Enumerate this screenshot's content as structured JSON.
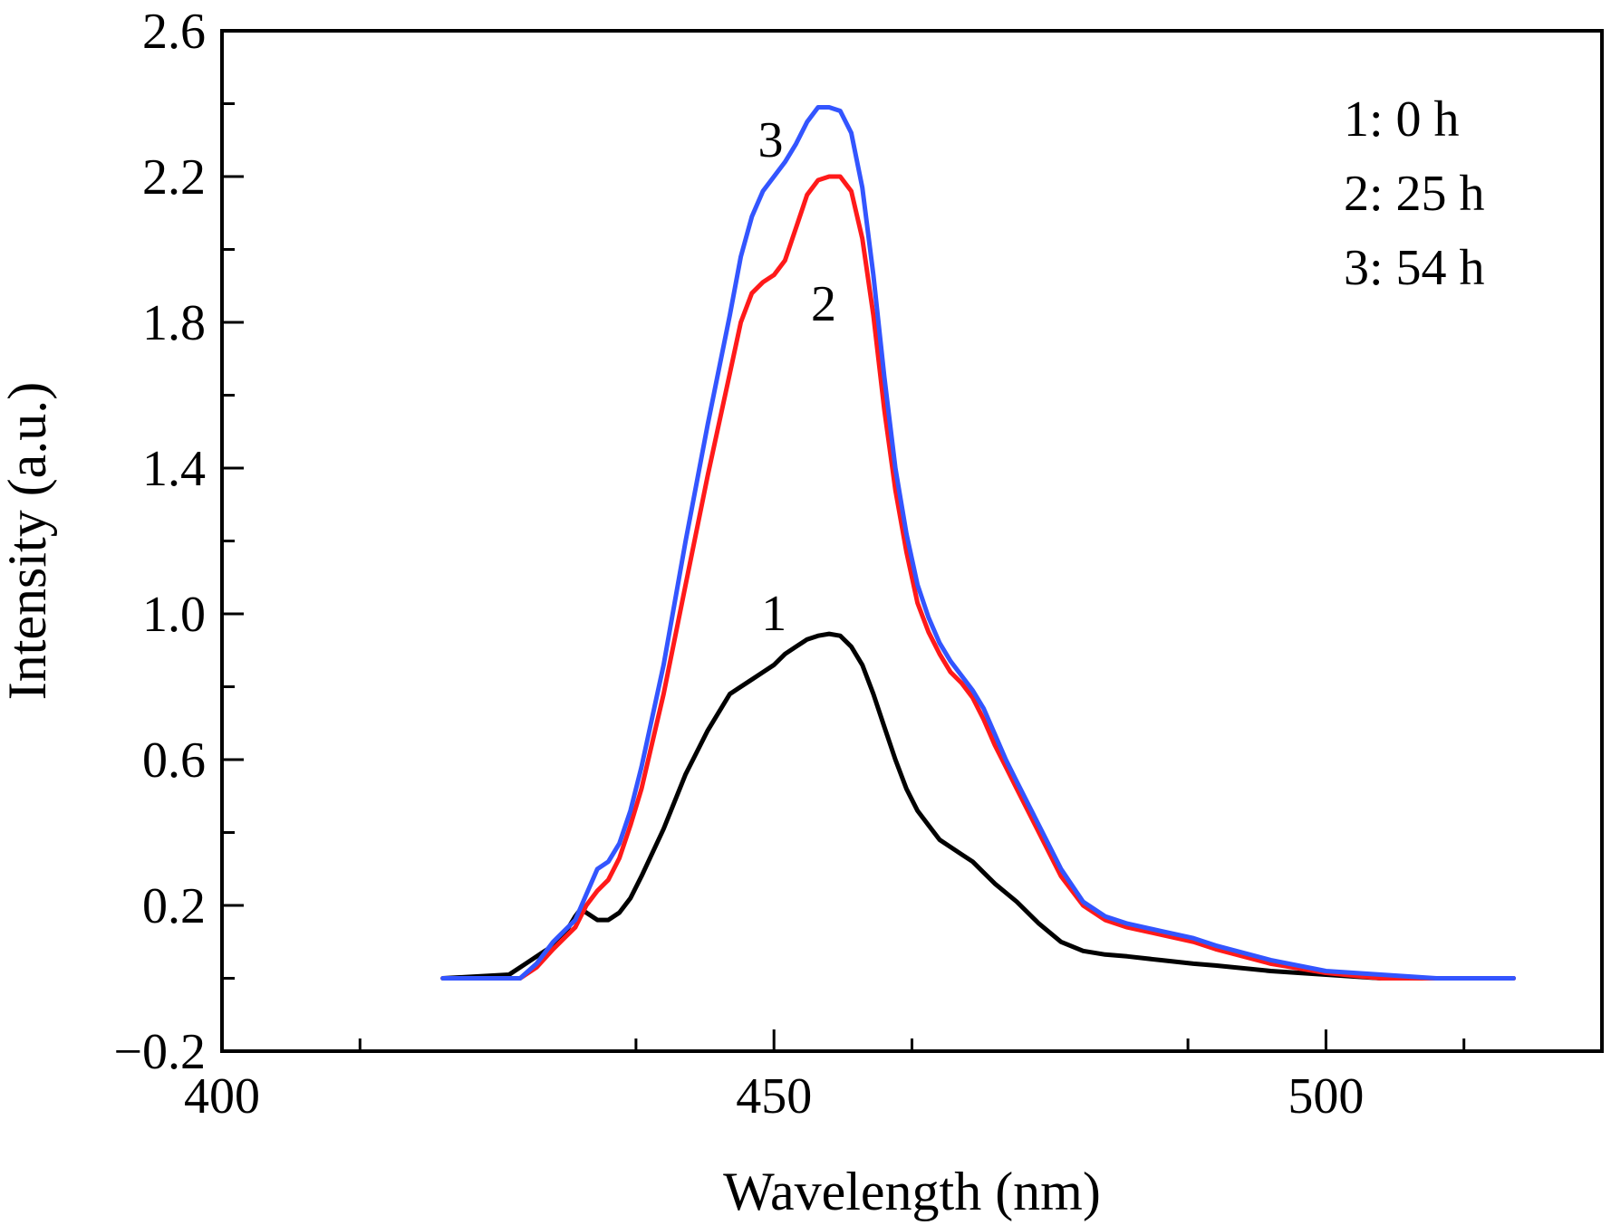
{
  "chart_data": {
    "type": "line",
    "title": "",
    "xlabel": "Wavelength (nm)",
    "ylabel": "Intensity (a.u.)",
    "xlim": [
      400,
      525
    ],
    "ylim": [
      -0.2,
      2.6
    ],
    "x_ticks": [
      400,
      450,
      500
    ],
    "x_tick_labels": [
      "400",
      "450",
      "500"
    ],
    "y_ticks": [
      -0.2,
      0.2,
      0.6,
      1.0,
      1.4,
      1.8,
      2.2,
      2.6
    ],
    "y_tick_labels": [
      "−0.2",
      "0.2",
      "0.6",
      "1.0",
      "1.4",
      "1.8",
      "2.2",
      "2.6"
    ],
    "y_minor_ticks": [
      0.0,
      0.4,
      0.8,
      1.2,
      1.6,
      2.0,
      2.4
    ],
    "grid": false,
    "legend": {
      "position": "top-right",
      "entries": [
        "1: 0 h",
        "2: 25 h",
        "3: 54 h"
      ]
    },
    "series": [
      {
        "name": "1",
        "label": "1",
        "color": "#000000",
        "x": [
          420,
          426,
          427.5,
          429,
          430,
          431,
          432,
          432.5,
          433,
          434,
          435,
          436,
          437,
          438,
          440,
          442,
          444,
          446,
          447,
          448,
          449,
          450,
          451,
          452,
          453,
          454,
          455,
          456,
          457,
          458,
          459,
          460,
          461,
          462,
          463,
          464,
          465,
          466,
          467,
          468,
          469,
          470,
          472,
          474,
          476,
          478,
          480,
          482,
          485,
          488,
          490,
          495,
          500,
          505,
          510,
          517
        ],
        "values": [
          0.0,
          0.01,
          0.04,
          0.07,
          0.09,
          0.12,
          0.17,
          0.19,
          0.18,
          0.16,
          0.16,
          0.18,
          0.22,
          0.28,
          0.41,
          0.56,
          0.68,
          0.78,
          0.8,
          0.82,
          0.84,
          0.86,
          0.89,
          0.91,
          0.93,
          0.94,
          0.945,
          0.94,
          0.91,
          0.86,
          0.78,
          0.69,
          0.6,
          0.52,
          0.46,
          0.42,
          0.38,
          0.36,
          0.34,
          0.32,
          0.29,
          0.26,
          0.21,
          0.15,
          0.1,
          0.075,
          0.065,
          0.06,
          0.05,
          0.04,
          0.035,
          0.02,
          0.01,
          0.0,
          0.0,
          0.0
        ]
      },
      {
        "name": "2",
        "label": "2",
        "color": "#ff1a1a",
        "x": [
          420,
          427,
          428.5,
          430,
          431,
          432,
          433,
          434,
          435,
          436,
          437,
          438,
          440,
          442,
          444,
          446,
          447,
          448,
          449,
          450,
          451,
          452,
          453,
          454,
          455,
          456,
          457,
          458,
          459,
          460,
          461,
          462,
          463,
          464,
          465,
          466,
          467,
          468,
          469,
          470,
          471,
          472,
          474,
          476,
          478,
          480,
          482,
          485,
          488,
          490,
          495,
          500,
          505,
          510,
          517
        ],
        "values": [
          0.0,
          0.0,
          0.03,
          0.08,
          0.11,
          0.14,
          0.2,
          0.24,
          0.27,
          0.33,
          0.42,
          0.52,
          0.78,
          1.08,
          1.38,
          1.66,
          1.8,
          1.88,
          1.91,
          1.93,
          1.97,
          2.06,
          2.15,
          2.19,
          2.2,
          2.2,
          2.16,
          2.03,
          1.82,
          1.56,
          1.34,
          1.17,
          1.03,
          0.95,
          0.89,
          0.84,
          0.81,
          0.77,
          0.71,
          0.64,
          0.58,
          0.52,
          0.4,
          0.28,
          0.2,
          0.16,
          0.14,
          0.12,
          0.1,
          0.08,
          0.04,
          0.015,
          0.0,
          0.0,
          0.0
        ]
      },
      {
        "name": "3",
        "label": "3",
        "color": "#3355ff",
        "x": [
          420,
          427,
          428.5,
          430,
          431,
          432,
          433,
          434,
          435,
          436,
          437,
          438,
          440,
          442,
          444,
          446,
          447,
          448,
          449,
          450,
          451,
          452,
          453,
          454,
          455,
          456,
          457,
          458,
          459,
          460,
          461,
          462,
          463,
          464,
          465,
          466,
          467,
          468,
          469,
          470,
          471,
          472,
          474,
          476,
          478,
          480,
          482,
          485,
          488,
          490,
          495,
          500,
          505,
          510,
          517
        ],
        "values": [
          0.0,
          0.0,
          0.04,
          0.1,
          0.13,
          0.16,
          0.23,
          0.3,
          0.32,
          0.37,
          0.46,
          0.58,
          0.86,
          1.2,
          1.52,
          1.82,
          1.98,
          2.09,
          2.16,
          2.2,
          2.24,
          2.29,
          2.35,
          2.39,
          2.39,
          2.38,
          2.32,
          2.17,
          1.93,
          1.65,
          1.4,
          1.22,
          1.08,
          0.99,
          0.92,
          0.87,
          0.83,
          0.79,
          0.74,
          0.67,
          0.6,
          0.54,
          0.42,
          0.3,
          0.21,
          0.17,
          0.15,
          0.13,
          0.11,
          0.09,
          0.05,
          0.02,
          0.01,
          0.0,
          0.0
        ]
      }
    ]
  }
}
